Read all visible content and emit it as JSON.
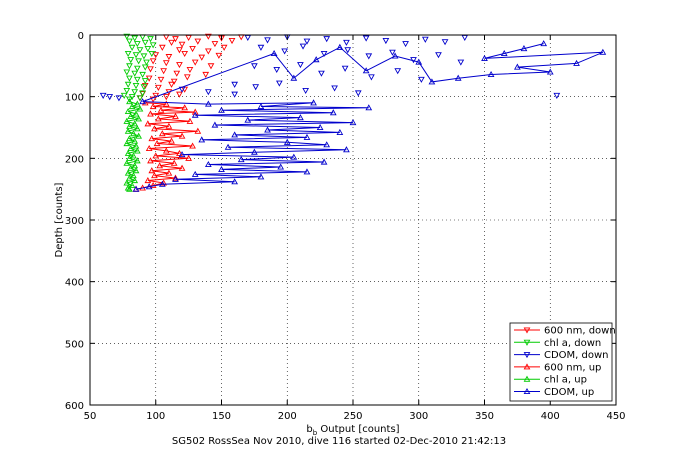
{
  "chart_data": {
    "type": "scatter",
    "xlabel_main": "b",
    "xlabel_sub": "b",
    "xlabel_rest": " Output [counts]",
    "ylabel": "Depth [counts]",
    "caption": "SG502 RossSea Nov 2010, dive 116 started 02-Dec-2010 21:42:13",
    "xlim": [
      50,
      450
    ],
    "ylim": [
      0,
      600
    ],
    "y_reversed": true,
    "grid": true,
    "legend_position": "bottom-right",
    "x_ticks": [
      50,
      100,
      150,
      200,
      250,
      300,
      350,
      400,
      450
    ],
    "y_ticks": [
      0,
      100,
      200,
      300,
      400,
      500,
      600
    ],
    "series": [
      {
        "name": "600 nm, down",
        "color": "#ff0000",
        "marker": "triangle-down",
        "connected": false,
        "points": [
          [
            108,
            3
          ],
          [
            115,
            6
          ],
          [
            125,
            4
          ],
          [
            140,
            2
          ],
          [
            150,
            5
          ],
          [
            165,
            3
          ],
          [
            112,
            12
          ],
          [
            120,
            15
          ],
          [
            132,
            10
          ],
          [
            145,
            14
          ],
          [
            158,
            9
          ],
          [
            105,
            20
          ],
          [
            118,
            24
          ],
          [
            128,
            22
          ],
          [
            140,
            26
          ],
          [
            152,
            20
          ],
          [
            100,
            32
          ],
          [
            110,
            35
          ],
          [
            122,
            30
          ],
          [
            135,
            36
          ],
          [
            148,
            33
          ],
          [
            98,
            42
          ],
          [
            108,
            45
          ],
          [
            118,
            48
          ],
          [
            130,
            44
          ],
          [
            142,
            50
          ],
          [
            96,
            55
          ],
          [
            106,
            58
          ],
          [
            116,
            62
          ],
          [
            126,
            56
          ],
          [
            138,
            64
          ],
          [
            95,
            70
          ],
          [
            104,
            72
          ],
          [
            114,
            75
          ],
          [
            124,
            68
          ],
          [
            92,
            82
          ],
          [
            102,
            85
          ],
          [
            112,
            80
          ],
          [
            122,
            88
          ],
          [
            90,
            95
          ],
          [
            100,
            98
          ],
          [
            110,
            92
          ],
          [
            118,
            96
          ],
          [
            88,
            102
          ],
          [
            98,
            104
          ],
          [
            108,
            100
          ]
        ]
      },
      {
        "name": "chl a, down",
        "color": "#00cc00",
        "marker": "triangle-down",
        "connected": false,
        "points": [
          [
            78,
            2
          ],
          [
            84,
            5
          ],
          [
            90,
            3
          ],
          [
            96,
            6
          ],
          [
            80,
            10
          ],
          [
            86,
            14
          ],
          [
            92,
            12
          ],
          [
            98,
            16
          ],
          [
            82,
            20
          ],
          [
            88,
            24
          ],
          [
            94,
            22
          ],
          [
            79,
            30
          ],
          [
            85,
            32
          ],
          [
            91,
            34
          ],
          [
            97,
            30
          ],
          [
            81,
            40
          ],
          [
            87,
            42
          ],
          [
            93,
            44
          ],
          [
            80,
            50
          ],
          [
            86,
            54
          ],
          [
            92,
            52
          ],
          [
            78,
            60
          ],
          [
            84,
            62
          ],
          [
            90,
            64
          ],
          [
            80,
            70
          ],
          [
            86,
            72
          ],
          [
            92,
            74
          ],
          [
            79,
            80
          ],
          [
            85,
            82
          ],
          [
            91,
            84
          ],
          [
            78,
            90
          ],
          [
            84,
            92
          ],
          [
            90,
            94
          ],
          [
            76,
            98
          ],
          [
            82,
            100
          ],
          [
            88,
            102
          ],
          [
            80,
            104
          ]
        ]
      },
      {
        "name": "CDOM, down",
        "color": "#0000cc",
        "marker": "triangle-down",
        "connected": false,
        "points": [
          [
            170,
            4
          ],
          [
            185,
            8
          ],
          [
            200,
            3
          ],
          [
            215,
            10
          ],
          [
            230,
            6
          ],
          [
            245,
            12
          ],
          [
            260,
            5
          ],
          [
            275,
            9
          ],
          [
            290,
            14
          ],
          [
            305,
            7
          ],
          [
            320,
            11
          ],
          [
            335,
            4
          ],
          [
            180,
            20
          ],
          [
            198,
            26
          ],
          [
            212,
            18
          ],
          [
            228,
            30
          ],
          [
            246,
            24
          ],
          [
            262,
            34
          ],
          [
            280,
            28
          ],
          [
            296,
            40
          ],
          [
            315,
            32
          ],
          [
            332,
            44
          ],
          [
            175,
            50
          ],
          [
            192,
            56
          ],
          [
            210,
            48
          ],
          [
            226,
            62
          ],
          [
            244,
            54
          ],
          [
            264,
            68
          ],
          [
            284,
            58
          ],
          [
            302,
            72
          ],
          [
            160,
            80
          ],
          [
            176,
            84
          ],
          [
            194,
            78
          ],
          [
            214,
            90
          ],
          [
            236,
            86
          ],
          [
            254,
            94
          ],
          [
            120,
            88
          ],
          [
            140,
            92
          ],
          [
            160,
            96
          ],
          [
            60,
            98
          ],
          [
            65,
            100
          ],
          [
            72,
            102
          ],
          [
            405,
            98
          ]
        ]
      },
      {
        "name": "600 nm, up",
        "color": "#ff0000",
        "marker": "triangle-up",
        "connected": true,
        "points": [
          [
            92,
            110
          ],
          [
            108,
            112
          ],
          [
            98,
            116
          ],
          [
            122,
            118
          ],
          [
            104,
            122
          ],
          [
            130,
            125
          ],
          [
            96,
            128
          ],
          [
            115,
            132
          ],
          [
            102,
            136
          ],
          [
            126,
            140
          ],
          [
            94,
            144
          ],
          [
            110,
            148
          ],
          [
            99,
            152
          ],
          [
            132,
            156
          ],
          [
            105,
            160
          ],
          [
            120,
            164
          ],
          [
            97,
            168
          ],
          [
            112,
            172
          ],
          [
            101,
            176
          ],
          [
            128,
            180
          ],
          [
            95,
            184
          ],
          [
            108,
            188
          ],
          [
            118,
            192
          ],
          [
            100,
            196
          ],
          [
            125,
            200
          ],
          [
            96,
            204
          ],
          [
            114,
            208
          ],
          [
            103,
            212
          ],
          [
            120,
            216
          ],
          [
            97,
            220
          ],
          [
            110,
            224
          ],
          [
            99,
            228
          ],
          [
            115,
            232
          ],
          [
            94,
            236
          ],
          [
            106,
            240
          ],
          [
            98,
            244
          ],
          [
            90,
            248
          ],
          [
            85,
            250
          ]
        ]
      },
      {
        "name": "chl a, up",
        "color": "#00cc00",
        "marker": "triangle-up",
        "connected": true,
        "points": [
          [
            80,
            108
          ],
          [
            86,
            112
          ],
          [
            82,
            116
          ],
          [
            88,
            120
          ],
          [
            79,
            124
          ],
          [
            85,
            128
          ],
          [
            81,
            132
          ],
          [
            87,
            136
          ],
          [
            78,
            140
          ],
          [
            84,
            144
          ],
          [
            80,
            148
          ],
          [
            86,
            152
          ],
          [
            79,
            156
          ],
          [
            83,
            160
          ],
          [
            87,
            164
          ],
          [
            80,
            168
          ],
          [
            84,
            172
          ],
          [
            78,
            176
          ],
          [
            85,
            180
          ],
          [
            81,
            184
          ],
          [
            86,
            188
          ],
          [
            79,
            192
          ],
          [
            83,
            196
          ],
          [
            80,
            200
          ],
          [
            86,
            204
          ],
          [
            78,
            208
          ],
          [
            84,
            212
          ],
          [
            81,
            216
          ],
          [
            85,
            220
          ],
          [
            79,
            224
          ],
          [
            83,
            228
          ],
          [
            80,
            232
          ],
          [
            84,
            236
          ],
          [
            78,
            240
          ],
          [
            82,
            244
          ],
          [
            79,
            248
          ],
          [
            80,
            250
          ]
        ]
      },
      {
        "name": "CDOM, up",
        "color": "#0000cc",
        "marker": "triangle-up",
        "connected": true,
        "points": [
          [
            395,
            14
          ],
          [
            380,
            22
          ],
          [
            365,
            30
          ],
          [
            350,
            38
          ],
          [
            440,
            28
          ],
          [
            420,
            46
          ],
          [
            375,
            52
          ],
          [
            400,
            60
          ],
          [
            355,
            64
          ],
          [
            330,
            70
          ],
          [
            310,
            76
          ],
          [
            300,
            44
          ],
          [
            282,
            34
          ],
          [
            260,
            58
          ],
          [
            240,
            20
          ],
          [
            222,
            40
          ],
          [
            205,
            70
          ],
          [
            190,
            30
          ],
          [
            90,
            108
          ],
          [
            140,
            112
          ],
          [
            220,
            110
          ],
          [
            180,
            116
          ],
          [
            262,
            118
          ],
          [
            150,
            122
          ],
          [
            235,
            126
          ],
          [
            130,
            130
          ],
          [
            210,
            134
          ],
          [
            170,
            138
          ],
          [
            250,
            142
          ],
          [
            145,
            146
          ],
          [
            225,
            150
          ],
          [
            185,
            154
          ],
          [
            240,
            158
          ],
          [
            160,
            162
          ],
          [
            215,
            166
          ],
          [
            135,
            170
          ],
          [
            200,
            174
          ],
          [
            230,
            178
          ],
          [
            155,
            182
          ],
          [
            245,
            186
          ],
          [
            175,
            190
          ],
          [
            120,
            194
          ],
          [
            205,
            198
          ],
          [
            165,
            202
          ],
          [
            228,
            206
          ],
          [
            140,
            210
          ],
          [
            195,
            214
          ],
          [
            150,
            218
          ],
          [
            215,
            222
          ],
          [
            130,
            226
          ],
          [
            180,
            230
          ],
          [
            115,
            234
          ],
          [
            160,
            238
          ],
          [
            105,
            242
          ],
          [
            95,
            246
          ],
          [
            85,
            250
          ]
        ]
      }
    ]
  }
}
